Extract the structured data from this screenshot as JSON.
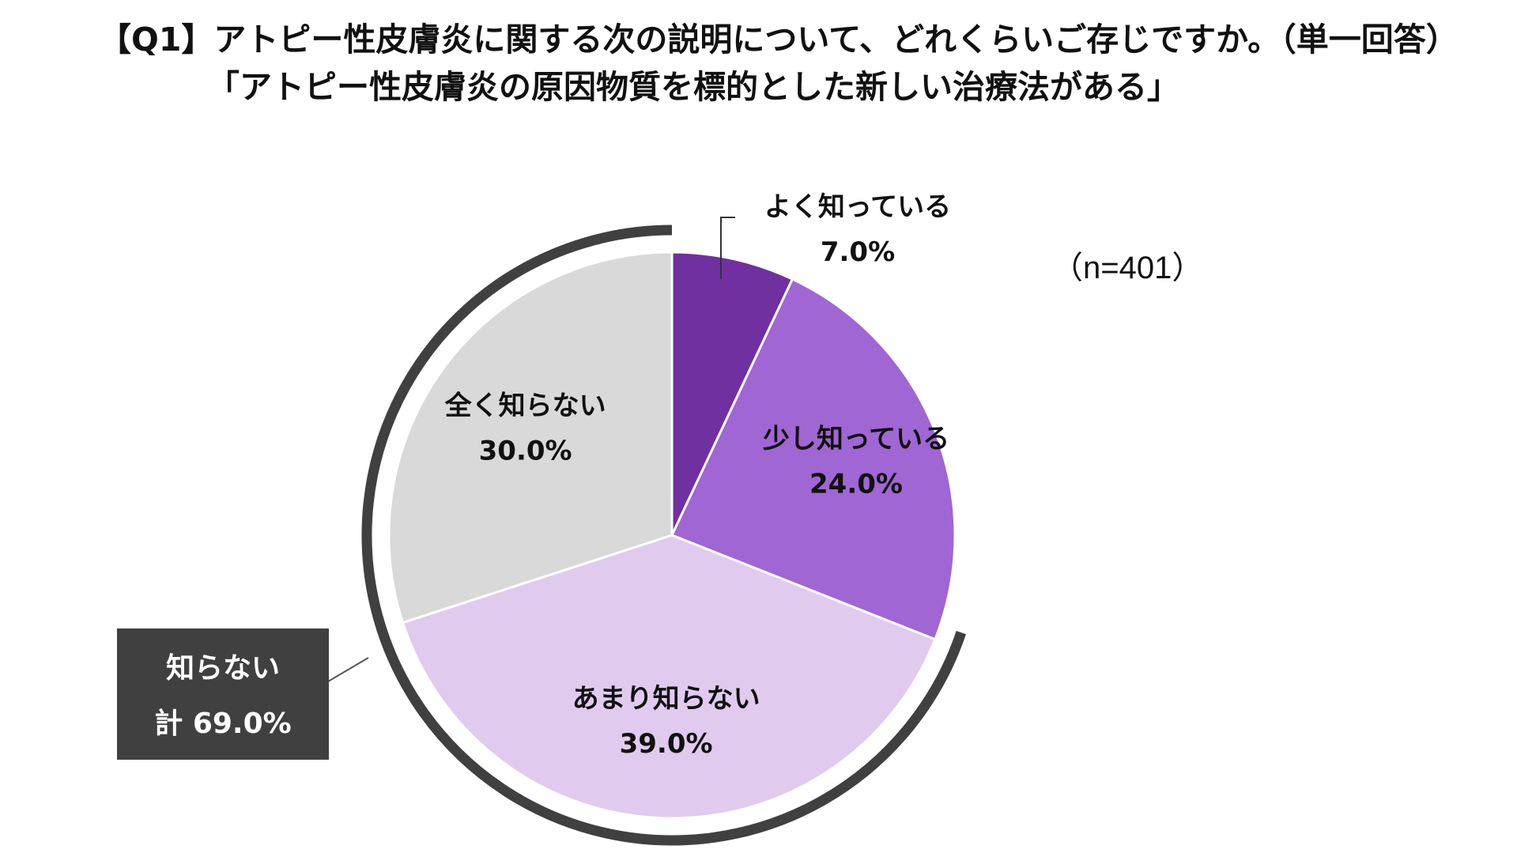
{
  "title": {
    "line1": "【Q1】アトピー性皮膚炎に関する次の説明について、どれくらいご存じですか。（単一回答）",
    "line2": "「アトピー性皮膚炎の原因物質を標的とした新しい治療法がある」"
  },
  "sample_size": "（n=401）",
  "chart_data": {
    "type": "pie",
    "categories": [
      "よく知っている",
      "少し知っている",
      "あまり知らない",
      "全く知らない"
    ],
    "values": [
      7.0,
      24.0,
      39.0,
      30.0
    ],
    "value_labels": [
      "7.0%",
      "24.0%",
      "39.0%",
      "30.0%"
    ],
    "colors": [
      "#7030a0",
      "#a066d3",
      "#e0cbef",
      "#d9d9d9"
    ],
    "start_angle_deg": 0,
    "direction": "clockwise",
    "bracket": {
      "covers": [
        "あまり知らない",
        "全く知らない"
      ],
      "label_line1": "知らない",
      "label_line2": "計 69.0%",
      "value": 69.0,
      "box_color": "#404040",
      "arc_color": "#404040"
    }
  }
}
